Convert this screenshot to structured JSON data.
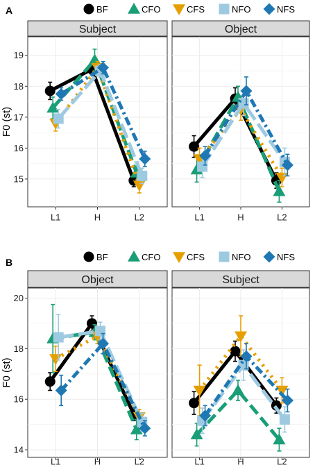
{
  "colors": {
    "BF": "#000000",
    "CFO": "#1a9e77",
    "CFS": "#e69f00",
    "NFO": "#9ecae1",
    "NFS": "#1f78b4"
  },
  "chart_data": [
    {
      "type": "line",
      "panel_label": "A",
      "legend": [
        "BF",
        "CFO",
        "CFS",
        "NFO",
        "NFS"
      ],
      "legend_position": "top",
      "ylabel": "F0 (st)",
      "ylim": [
        14.1,
        19.6
      ],
      "yticks": [
        15,
        16,
        17,
        18,
        19
      ],
      "categories": [
        "L1",
        "H",
        "L2"
      ],
      "grid": true,
      "facets": [
        {
          "title": "Subject",
          "series": [
            {
              "name": "BF",
              "values": [
                17.85,
                18.55,
                14.95
              ],
              "errors": [
                0.28,
                0.18,
                0.2
              ]
            },
            {
              "name": "CFO",
              "values": [
                17.3,
                18.85,
                15.2
              ],
              "errors": [
                0.35,
                0.35,
                0.35
              ]
            },
            {
              "name": "CFS",
              "values": [
                16.8,
                18.6,
                14.8
              ],
              "errors": [
                0.25,
                0.2,
                0.25
              ]
            },
            {
              "name": "NFO",
              "values": [
                16.95,
                18.5,
                15.1
              ],
              "errors": [
                0.3,
                0.2,
                0.25
              ]
            },
            {
              "name": "NFS",
              "values": [
                17.75,
                18.6,
                15.65
              ],
              "errors": [
                0.2,
                0.2,
                0.25
              ]
            }
          ]
        },
        {
          "title": "Object",
          "series": [
            {
              "name": "BF",
              "values": [
                16.05,
                17.6,
                14.95
              ],
              "errors": [
                0.35,
                0.35,
                0.25
              ]
            },
            {
              "name": "CFO",
              "values": [
                15.3,
                17.65,
                14.6
              ],
              "errors": [
                0.4,
                0.35,
                0.35
              ]
            },
            {
              "name": "CFS",
              "values": [
                15.65,
                17.25,
                15.05
              ],
              "errors": [
                0.35,
                0.35,
                0.3
              ]
            },
            {
              "name": "NFO",
              "values": [
                15.4,
                17.45,
                15.55
              ],
              "errors": [
                0.35,
                0.4,
                0.45
              ]
            },
            {
              "name": "NFS",
              "values": [
                15.75,
                17.85,
                15.45
              ],
              "errors": [
                0.3,
                0.45,
                0.35
              ]
            }
          ]
        }
      ]
    },
    {
      "type": "line",
      "panel_label": "B",
      "legend": [
        "BF",
        "CFO",
        "CFS",
        "NFO",
        "NFS"
      ],
      "legend_position": "top",
      "ylabel": "F0 (st)",
      "ylim": [
        13.7,
        20.4
      ],
      "yticks": [
        14,
        16,
        18,
        20
      ],
      "categories": [
        "L1",
        "H",
        "L2"
      ],
      "grid": true,
      "facets": [
        {
          "title": "Object",
          "series": [
            {
              "name": "BF",
              "values": [
                16.7,
                19.0,
                15.4
              ],
              "errors": [
                0.35,
                0.3,
                0.25
              ]
            },
            {
              "name": "CFO",
              "values": [
                18.4,
                18.65,
                14.8
              ],
              "errors": [
                1.35,
                0.3,
                0.4
              ]
            },
            {
              "name": "CFS",
              "values": [
                17.6,
                18.5,
                15.3
              ],
              "errors": [
                0.5,
                0.3,
                0.3
              ]
            },
            {
              "name": "NFO",
              "values": [
                18.45,
                18.7,
                15.1
              ],
              "errors": [
                0.9,
                0.35,
                0.35
              ]
            },
            {
              "name": "NFS",
              "values": [
                16.35,
                18.2,
                14.85
              ],
              "errors": [
                0.6,
                0.4,
                0.3
              ]
            }
          ]
        },
        {
          "title": "Subject",
          "series": [
            {
              "name": "BF",
              "values": [
                15.85,
                17.9,
                15.75
              ],
              "errors": [
                0.45,
                0.4,
                0.3
              ]
            },
            {
              "name": "CFO",
              "values": [
                14.6,
                16.35,
                14.4
              ],
              "errors": [
                0.45,
                0.4,
                0.45
              ]
            },
            {
              "name": "CFS",
              "values": [
                16.35,
                18.5,
                16.35
              ],
              "errors": [
                1.0,
                0.8,
                0.5
              ]
            },
            {
              "name": "NFO",
              "values": [
                15.15,
                17.35,
                15.2
              ],
              "errors": [
                0.5,
                0.6,
                0.5
              ]
            },
            {
              "name": "NFS",
              "values": [
                15.35,
                17.7,
                15.95
              ],
              "errors": [
                0.4,
                0.5,
                0.45
              ]
            }
          ]
        }
      ]
    }
  ]
}
